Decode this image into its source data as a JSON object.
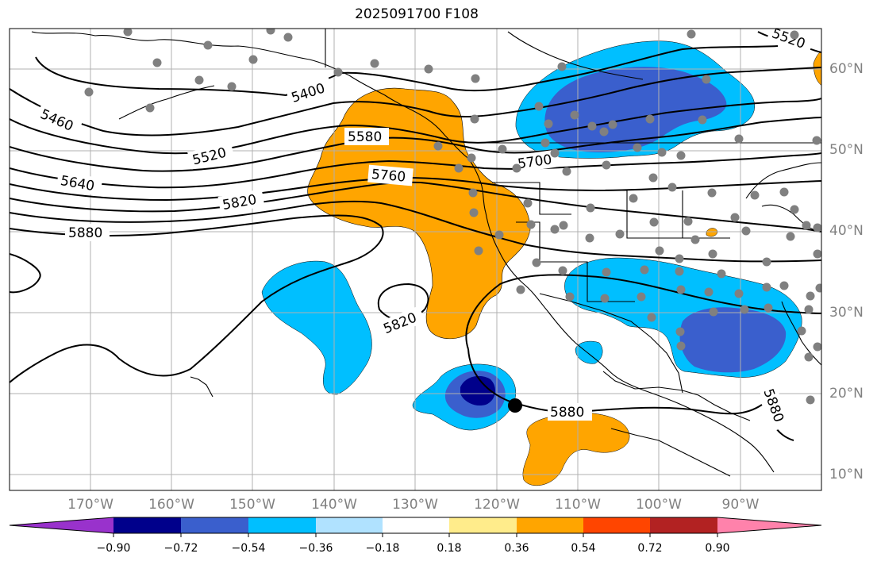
{
  "title": "2025091700 F108",
  "lat_labels": [
    "60°N",
    "50°N",
    "40°N",
    "30°N",
    "20°N",
    "10°N"
  ],
  "lon_labels": [
    "170°W",
    "160°W",
    "150°W",
    "140°W",
    "130°W",
    "120°W",
    "110°W",
    "100°W",
    "90°W"
  ],
  "contour_labels": [
    "5400",
    "5460",
    "5520",
    "5580",
    "5640",
    "5700",
    "5760",
    "5820",
    "5880",
    "5820",
    "5880",
    "5520",
    "5880"
  ],
  "colorbar": {
    "ticks": [
      "−0.90",
      "−0.72",
      "−0.54",
      "−0.36",
      "−0.18",
      "0.18",
      "0.36",
      "0.54",
      "0.72",
      "0.90"
    ],
    "colors": [
      "#9932cc",
      "#00008b",
      "#3a5fcd",
      "#00bfff",
      "#b0e2ff",
      "#ffffff",
      "#ffec8b",
      "#ffa500",
      "#ff4500",
      "#b22222",
      "#ff82ab"
    ]
  },
  "fill_colors": {
    "dark_blue": "#00008b",
    "mid_blue": "#3a5fcd",
    "light_blue": "#00bfff",
    "orange": "#ffa500"
  },
  "station_marker_color": "#808080",
  "center_marker_color": "#000000"
}
